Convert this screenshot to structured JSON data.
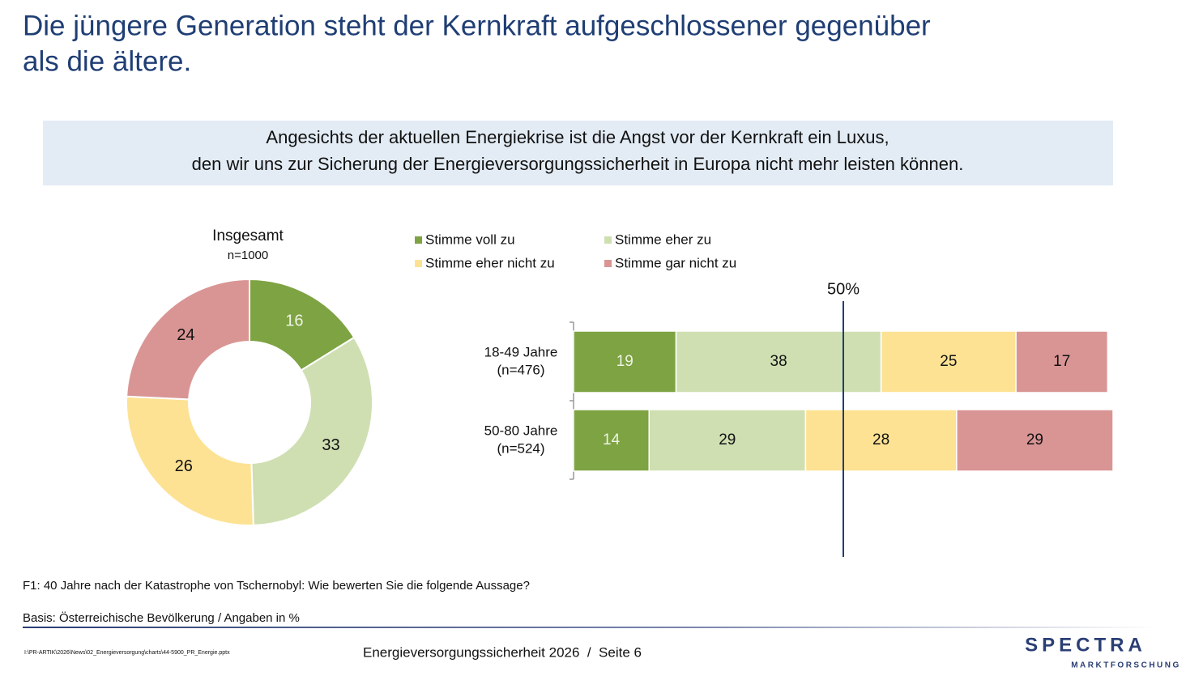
{
  "title": [
    "Die jüngere Generation steht der Kernkraft aufgeschlossener gegenüber",
    "als die ältere."
  ],
  "statement": [
    "Angesichts der aktuellen Energiekrise ist die Angst vor der Kernkraft ein Luxus,",
    "den wir uns zur Sicherung der Energieversorgungssicherheit in Europa nicht mehr leisten können."
  ],
  "chart_data": [
    {
      "type": "donut",
      "title": "Insgesamt",
      "subtitle": "n=1000",
      "values": [
        16,
        33,
        26,
        24
      ],
      "colors": [
        "#7ea343",
        "#cfdfb2",
        "#fde293",
        "#d99594"
      ]
    },
    {
      "type": "stacked-bar",
      "orientation": "horizontal",
      "categories": [
        "18-49 Jahre",
        "50-80 Jahre"
      ],
      "category_notes": [
        "(n=476)",
        "(n=524)"
      ],
      "xlim": [
        0,
        100
      ],
      "reference_line": {
        "value": 50,
        "label": "50%"
      },
      "series": [
        {
          "name": "Stimme voll zu",
          "color": "#7ea343",
          "values": [
            19,
            14
          ]
        },
        {
          "name": "Stimme eher zu",
          "color": "#cfdfb2",
          "values": [
            38,
            29
          ]
        },
        {
          "name": "Stimme eher nicht zu",
          "color": "#fde293",
          "values": [
            25,
            28
          ]
        },
        {
          "name": "Stimme gar nicht zu",
          "color": "#d99594",
          "values": [
            17,
            29
          ]
        }
      ]
    }
  ],
  "question": "F1: 40 Jahre nach der Katastrophe von Tschernobyl: Wie bewerten Sie die folgende Aussage?",
  "basis": "Basis: Österreichische Bevölkerung / Angaben in %",
  "file_path": "I:\\PR-ARTIK\\2026\\News\\02_Energieversorgung\\charts\\44-5900_PR_Energie.pptx",
  "footer": "Energieversorgungssicherheit 2026  /  Seite 6",
  "logo": {
    "name": "SPECTRA",
    "tagline": "MARKTFORSCHUNG"
  }
}
